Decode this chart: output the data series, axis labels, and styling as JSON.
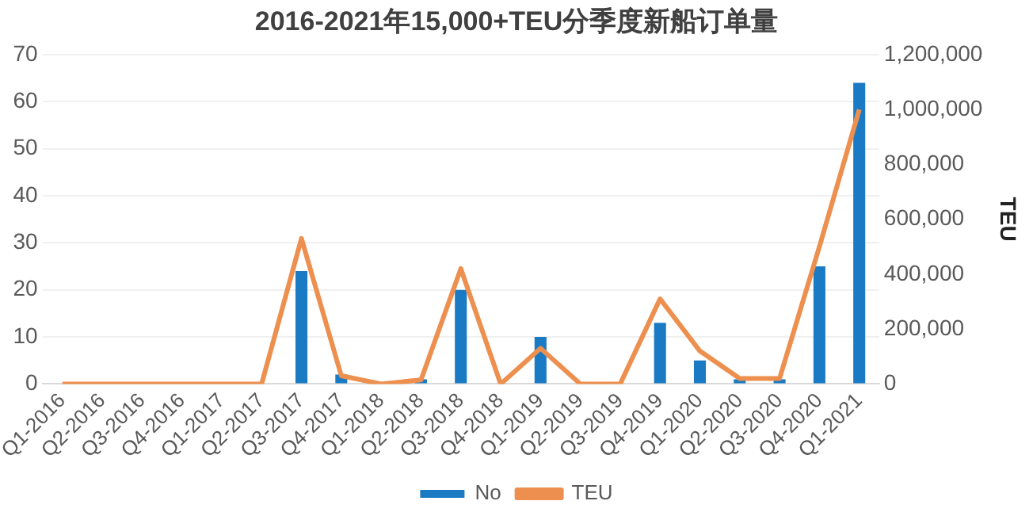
{
  "chart_data": {
    "type": "bar",
    "title": "2016-2021年15,000+TEU分季度新船订单量",
    "y2label": "TEU",
    "categories": [
      "Q1-2016",
      "Q2-2016",
      "Q3-2016",
      "Q4-2016",
      "Q1-2017",
      "Q2-2017",
      "Q3-2017",
      "Q4-2017",
      "Q1-2018",
      "Q2-2018",
      "Q3-2018",
      "Q4-2018",
      "Q1-2019",
      "Q2-2019",
      "Q3-2019",
      "Q4-2019",
      "Q1-2020",
      "Q2-2020",
      "Q3-2020",
      "Q4-2020",
      "Q1-2021"
    ],
    "series": [
      {
        "name": "No",
        "color": "#1a7bc4",
        "values": [
          0,
          0,
          0,
          0,
          0,
          0,
          24,
          2,
          0,
          1,
          20,
          0,
          10,
          0,
          0,
          13,
          5,
          1,
          1,
          25,
          64
        ]
      },
      {
        "name": "TEU",
        "type": "line",
        "axis": "y2",
        "color": "#ed8f4e",
        "values": [
          0,
          0,
          0,
          0,
          0,
          0,
          530000,
          30000,
          0,
          15000,
          420000,
          0,
          130000,
          0,
          0,
          310000,
          120000,
          20000,
          20000,
          500000,
          1000000
        ]
      }
    ],
    "ylim": [
      0,
      70
    ],
    "yticks": [
      0,
      10,
      20,
      30,
      40,
      50,
      60,
      70
    ],
    "y2lim": [
      0,
      1200000
    ],
    "y2ticks": [
      {
        "value": 0,
        "label": "0"
      },
      {
        "value": 200000,
        "label": "200,000"
      },
      {
        "value": 400000,
        "label": "400,000"
      },
      {
        "value": 600000,
        "label": "600,000"
      },
      {
        "value": 800000,
        "label": "800,000"
      },
      {
        "value": 1000000,
        "label": "1,000,000"
      },
      {
        "value": 1200000,
        "label": "1,200,000"
      }
    ],
    "grid": "y",
    "legend": "bottom",
    "marker": "none",
    "line_style": "solid"
  }
}
